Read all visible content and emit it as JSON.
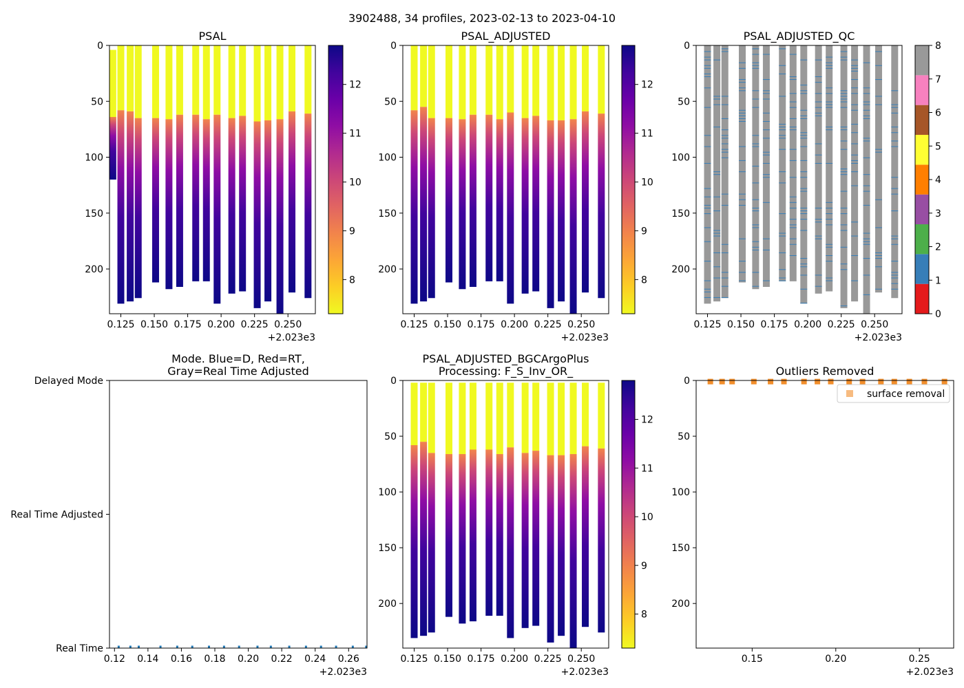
{
  "figure": {
    "suptitle": "3902488, 34 profiles, 2023-02-13 to 2023-04-10"
  },
  "chart_data": [
    {
      "type": "heatmap",
      "panel": "psal",
      "title": "PSAL",
      "colormap": "plasma_r",
      "xlim": [
        0.1165,
        0.2705
      ],
      "ylim": [
        240,
        0
      ],
      "xticks": [
        0.125,
        0.15,
        0.175,
        0.2,
        0.225,
        0.25
      ],
      "xtick_labels": [
        "0.125",
        "0.150",
        "0.175",
        "0.200",
        "0.225",
        "0.250"
      ],
      "x_offset_label": "+2.023e3",
      "yticks": [
        0,
        50,
        100,
        150,
        200
      ],
      "ytick_labels": [
        "0",
        "50",
        "100",
        "150",
        "200"
      ],
      "colorbar": {
        "vmin": 7.3,
        "vmax": 12.8,
        "ticks": [
          8,
          9,
          10,
          11,
          12
        ],
        "tick_labels": [
          "8",
          "9",
          "10",
          "11",
          "12"
        ]
      },
      "profiles": [
        {
          "x": 0.119,
          "top": 4,
          "mix": 64,
          "bottom": 120
        },
        {
          "x": 0.125,
          "top": 0,
          "mix": 58,
          "bottom": 231
        },
        {
          "x": 0.132,
          "top": 0,
          "mix": 59,
          "bottom": 229
        },
        {
          "x": 0.138,
          "top": 0,
          "mix": 65,
          "bottom": 226
        },
        {
          "x": 0.151,
          "top": 0,
          "mix": 65,
          "bottom": 212
        },
        {
          "x": 0.161,
          "top": 0,
          "mix": 66,
          "bottom": 218
        },
        {
          "x": 0.169,
          "top": 0,
          "mix": 62,
          "bottom": 216
        },
        {
          "x": 0.181,
          "top": 0,
          "mix": 62,
          "bottom": 211
        },
        {
          "x": 0.189,
          "top": 0,
          "mix": 66,
          "bottom": 211
        },
        {
          "x": 0.197,
          "top": 0,
          "mix": 62,
          "bottom": 231
        },
        {
          "x": 0.208,
          "top": 0,
          "mix": 65,
          "bottom": 222
        },
        {
          "x": 0.216,
          "top": 0,
          "mix": 63,
          "bottom": 220
        },
        {
          "x": 0.227,
          "top": 0,
          "mix": 68,
          "bottom": 235
        },
        {
          "x": 0.235,
          "top": 0,
          "mix": 67,
          "bottom": 229
        },
        {
          "x": 0.244,
          "top": 0,
          "mix": 66,
          "bottom": 240
        },
        {
          "x": 0.253,
          "top": 0,
          "mix": 59,
          "bottom": 221
        },
        {
          "x": 0.265,
          "top": 0,
          "mix": 61,
          "bottom": 226
        }
      ]
    },
    {
      "type": "heatmap",
      "panel": "psal_adjusted",
      "title": "PSAL_ADJUSTED",
      "colormap": "plasma_r",
      "xlim": [
        0.1165,
        0.2705
      ],
      "ylim": [
        240,
        0
      ],
      "xticks": [
        0.125,
        0.15,
        0.175,
        0.2,
        0.225,
        0.25
      ],
      "xtick_labels": [
        "0.125",
        "0.150",
        "0.175",
        "0.200",
        "0.225",
        "0.250"
      ],
      "x_offset_label": "+2.023e3",
      "yticks": [
        0,
        50,
        100,
        150,
        200
      ],
      "ytick_labels": [
        "0",
        "50",
        "100",
        "150",
        "200"
      ],
      "colorbar": {
        "vmin": 7.3,
        "vmax": 12.8,
        "ticks": [
          8,
          9,
          10,
          11,
          12
        ],
        "tick_labels": [
          "8",
          "9",
          "10",
          "11",
          "12"
        ]
      },
      "profiles": [
        {
          "x": 0.125,
          "top": 0,
          "mix": 58,
          "bottom": 231
        },
        {
          "x": 0.132,
          "top": 0,
          "mix": 55,
          "bottom": 229
        },
        {
          "x": 0.138,
          "top": 0,
          "mix": 65,
          "bottom": 226
        },
        {
          "x": 0.151,
          "top": 0,
          "mix": 65,
          "bottom": 212
        },
        {
          "x": 0.161,
          "top": 0,
          "mix": 66,
          "bottom": 218
        },
        {
          "x": 0.169,
          "top": 0,
          "mix": 62,
          "bottom": 216
        },
        {
          "x": 0.181,
          "top": 0,
          "mix": 62,
          "bottom": 211
        },
        {
          "x": 0.189,
          "top": 0,
          "mix": 66,
          "bottom": 211
        },
        {
          "x": 0.197,
          "top": 0,
          "mix": 60,
          "bottom": 231
        },
        {
          "x": 0.208,
          "top": 0,
          "mix": 65,
          "bottom": 222
        },
        {
          "x": 0.216,
          "top": 0,
          "mix": 63,
          "bottom": 220
        },
        {
          "x": 0.227,
          "top": 0,
          "mix": 67,
          "bottom": 235
        },
        {
          "x": 0.235,
          "top": 0,
          "mix": 67,
          "bottom": 229
        },
        {
          "x": 0.244,
          "top": 0,
          "mix": 66,
          "bottom": 240
        },
        {
          "x": 0.253,
          "top": 0,
          "mix": 59,
          "bottom": 221
        },
        {
          "x": 0.265,
          "top": 0,
          "mix": 61,
          "bottom": 226
        }
      ]
    },
    {
      "type": "heatmap",
      "panel": "psal_adjusted_qc",
      "title": "PSAL_ADJUSTED_QC",
      "colormap": "Set1 (0-8)",
      "xlim": [
        0.1165,
        0.2705
      ],
      "ylim": [
        240,
        0
      ],
      "xticks": [
        0.125,
        0.15,
        0.175,
        0.2,
        0.225,
        0.25
      ],
      "xtick_labels": [
        "0.125",
        "0.150",
        "0.175",
        "0.200",
        "0.225",
        "0.250"
      ],
      "x_offset_label": "+2.023e3",
      "yticks": [
        0,
        50,
        100,
        150,
        200
      ],
      "ytick_labels": [
        "0",
        "50",
        "100",
        "150",
        "200"
      ],
      "colorbar": {
        "vmin": 0,
        "vmax": 8,
        "ticks": [
          0,
          1,
          2,
          3,
          4,
          5,
          6,
          7,
          8
        ],
        "tick_labels": [
          "0",
          "1",
          "2",
          "3",
          "4",
          "5",
          "6",
          "7",
          "8"
        ],
        "colors": [
          "#e41a1c",
          "#377eb8",
          "#4daf4a",
          "#984ea3",
          "#ff7f00",
          "#ffff33",
          "#a65628",
          "#f781bf",
          "#999999"
        ]
      },
      "dominant_flag": 8,
      "secondary_flag": 1,
      "profiles": [
        {
          "x": 0.125,
          "bottom": 231
        },
        {
          "x": 0.132,
          "bottom": 229
        },
        {
          "x": 0.138,
          "bottom": 226
        },
        {
          "x": 0.151,
          "bottom": 212
        },
        {
          "x": 0.161,
          "bottom": 218
        },
        {
          "x": 0.169,
          "bottom": 216
        },
        {
          "x": 0.181,
          "bottom": 211
        },
        {
          "x": 0.189,
          "bottom": 211
        },
        {
          "x": 0.197,
          "bottom": 231
        },
        {
          "x": 0.208,
          "bottom": 222
        },
        {
          "x": 0.216,
          "bottom": 220
        },
        {
          "x": 0.227,
          "bottom": 235
        },
        {
          "x": 0.235,
          "bottom": 229
        },
        {
          "x": 0.244,
          "bottom": 240
        },
        {
          "x": 0.253,
          "bottom": 221
        },
        {
          "x": 0.265,
          "bottom": 226
        }
      ]
    },
    {
      "type": "scatter",
      "panel": "mode",
      "title": "Mode. Blue=D, Red=RT,\nGray=Real Time Adjusted",
      "title_lines": [
        "Mode. Blue=D, Red=RT,",
        "Gray=Real Time Adjusted"
      ],
      "xlim": [
        0.117,
        0.271
      ],
      "xticks": [
        0.12,
        0.14,
        0.16,
        0.18,
        0.2,
        0.22,
        0.24,
        0.26
      ],
      "xtick_labels": [
        "0.12",
        "0.14",
        "0.16",
        "0.18",
        "0.20",
        "0.22",
        "0.24",
        "0.26"
      ],
      "x_offset_label": "+2.023e3",
      "ylim": [
        0,
        2
      ],
      "yticks": [
        0,
        1,
        2
      ],
      "ytick_labels": [
        "Real Time",
        "Real Time Adjusted",
        "Delayed Mode"
      ],
      "point_color": "#1f77b4",
      "x": [
        0.1225,
        0.1295,
        0.1345,
        0.1475,
        0.1575,
        0.1665,
        0.1765,
        0.1855,
        0.1945,
        0.2055,
        0.2135,
        0.2245,
        0.2345,
        0.2435,
        0.2525,
        0.2625,
        0.2705
      ],
      "y": [
        0,
        0,
        0,
        0,
        0,
        0,
        0,
        0,
        0,
        0,
        0,
        0,
        0,
        0,
        0,
        0,
        0
      ]
    },
    {
      "type": "heatmap",
      "panel": "psal_adjusted_bgcargoplus",
      "title": "PSAL_ADJUSTED_BGCArgoPlus\nProcessing: F_S_Inv_OR_",
      "title_lines": [
        "PSAL_ADJUSTED_BGCArgoPlus",
        "Processing: F_S_Inv_OR_"
      ],
      "colormap": "plasma_r",
      "xlim": [
        0.1165,
        0.2705
      ],
      "ylim": [
        240,
        0
      ],
      "xticks": [
        0.125,
        0.15,
        0.175,
        0.2,
        0.225,
        0.25
      ],
      "xtick_labels": [
        "0.125",
        "0.150",
        "0.175",
        "0.200",
        "0.225",
        "0.250"
      ],
      "x_offset_label": "+2.023e3",
      "yticks": [
        0,
        50,
        100,
        150,
        200
      ],
      "ytick_labels": [
        "0",
        "50",
        "100",
        "150",
        "200"
      ],
      "colorbar": {
        "vmin": 7.3,
        "vmax": 12.8,
        "ticks": [
          8,
          9,
          10,
          11,
          12
        ],
        "tick_labels": [
          "8",
          "9",
          "10",
          "11",
          "12"
        ]
      },
      "profiles": [
        {
          "x": 0.125,
          "top": 2,
          "mix": 58,
          "bottom": 231
        },
        {
          "x": 0.132,
          "top": 2,
          "mix": 55,
          "bottom": 229
        },
        {
          "x": 0.138,
          "top": 2,
          "mix": 65,
          "bottom": 226
        },
        {
          "x": 0.151,
          "top": 2,
          "mix": 66,
          "bottom": 212
        },
        {
          "x": 0.161,
          "top": 2,
          "mix": 66,
          "bottom": 218
        },
        {
          "x": 0.169,
          "top": 2,
          "mix": 62,
          "bottom": 216
        },
        {
          "x": 0.181,
          "top": 2,
          "mix": 62,
          "bottom": 211
        },
        {
          "x": 0.189,
          "top": 2,
          "mix": 66,
          "bottom": 211
        },
        {
          "x": 0.197,
          "top": 2,
          "mix": 60,
          "bottom": 231
        },
        {
          "x": 0.208,
          "top": 2,
          "mix": 65,
          "bottom": 222
        },
        {
          "x": 0.216,
          "top": 2,
          "mix": 63,
          "bottom": 220
        },
        {
          "x": 0.227,
          "top": 2,
          "mix": 67,
          "bottom": 235
        },
        {
          "x": 0.235,
          "top": 2,
          "mix": 67,
          "bottom": 229
        },
        {
          "x": 0.244,
          "top": 2,
          "mix": 66,
          "bottom": 240
        },
        {
          "x": 0.253,
          "top": 2,
          "mix": 59,
          "bottom": 221
        },
        {
          "x": 0.265,
          "top": 2,
          "mix": 61,
          "bottom": 226
        }
      ]
    },
    {
      "type": "scatter",
      "panel": "outliers",
      "title": "Outliers Removed",
      "xlim": [
        0.1165,
        0.2705
      ],
      "xticks": [
        0.15,
        0.2,
        0.25
      ],
      "xtick_labels": [
        "0.15",
        "0.20",
        "0.25"
      ],
      "x_offset_label": "+2.023e3",
      "ylim": [
        240,
        0
      ],
      "yticks": [
        0,
        50,
        100,
        150,
        200
      ],
      "ytick_labels": [
        "0",
        "50",
        "100",
        "150",
        "200"
      ],
      "legend": {
        "label": "surface removal",
        "placement": "top-right"
      },
      "series": [
        {
          "name": "surface removal",
          "marker": "square",
          "color": "#f28e2b",
          "x": [
            0.125,
            0.132,
            0.138,
            0.151,
            0.161,
            0.169,
            0.181,
            0.189,
            0.197,
            0.208,
            0.216,
            0.227,
            0.235,
            0.244,
            0.253,
            0.265
          ],
          "y": [
            1,
            1,
            1,
            1,
            1,
            1,
            1,
            1,
            1,
            1,
            1,
            1,
            1,
            1,
            1,
            1
          ]
        }
      ]
    }
  ]
}
